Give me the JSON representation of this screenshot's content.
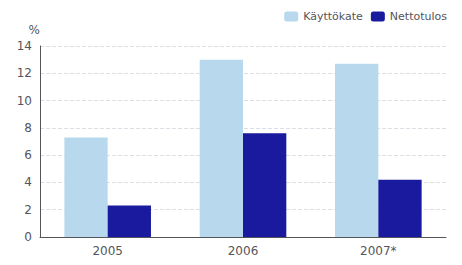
{
  "chart_data": {
    "type": "bar",
    "categories": [
      "2005",
      "2006",
      "2007*"
    ],
    "series": [
      {
        "name": "Käyttökate",
        "color": "#b8d9ed",
        "values": [
          7.3,
          13.0,
          12.7
        ]
      },
      {
        "name": "Nettotulos",
        "color": "#1a1a9e",
        "values": [
          2.3,
          7.6,
          4.2
        ]
      }
    ],
    "ylabel": "%",
    "ylim": [
      0,
      14
    ],
    "yticks": [
      0,
      2,
      4,
      6,
      8,
      10,
      12,
      14
    ],
    "grid": true,
    "legend": "upper right"
  }
}
